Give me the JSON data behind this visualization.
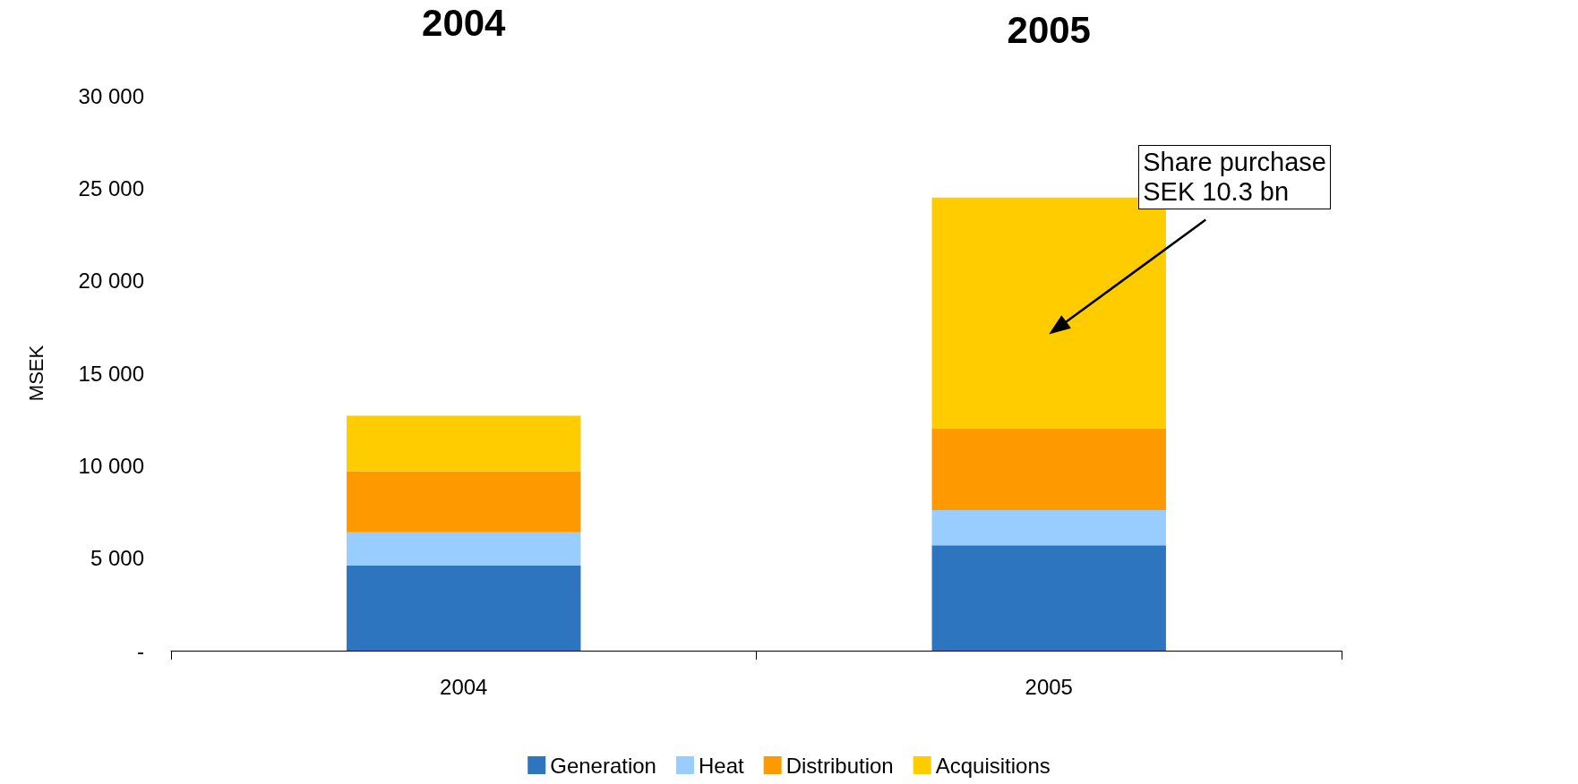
{
  "chart_data": {
    "type": "bar",
    "stacked": true,
    "ylabel": "MSEK",
    "categories": [
      "2004",
      "2005"
    ],
    "series": [
      {
        "name": "Generation",
        "color": "#2e75c0",
        "values": [
          4600,
          5700
        ]
      },
      {
        "name": "Heat",
        "color": "#99ccff",
        "values": [
          1800,
          1900
        ]
      },
      {
        "name": "Distribution",
        "color": "#ff9900",
        "values": [
          3300,
          4400
        ]
      },
      {
        "name": "Acquisitions",
        "color": "#ffcc00",
        "values": [
          3000,
          12500
        ]
      }
    ],
    "ylim": [
      0,
      30000
    ],
    "yticks": [
      {
        "value": 0,
        "label": "-"
      },
      {
        "value": 5000,
        "label": "5 000"
      },
      {
        "value": 10000,
        "label": "10 000"
      },
      {
        "value": 15000,
        "label": "15 000"
      },
      {
        "value": 20000,
        "label": "20 000"
      },
      {
        "value": 25000,
        "label": "25 000"
      },
      {
        "value": 30000,
        "label": "30 000"
      }
    ],
    "grid": false,
    "legend": "bottom",
    "annotations": [
      "2004",
      "2005",
      "Share purchase\nSEK 10.3 bn"
    ]
  }
}
